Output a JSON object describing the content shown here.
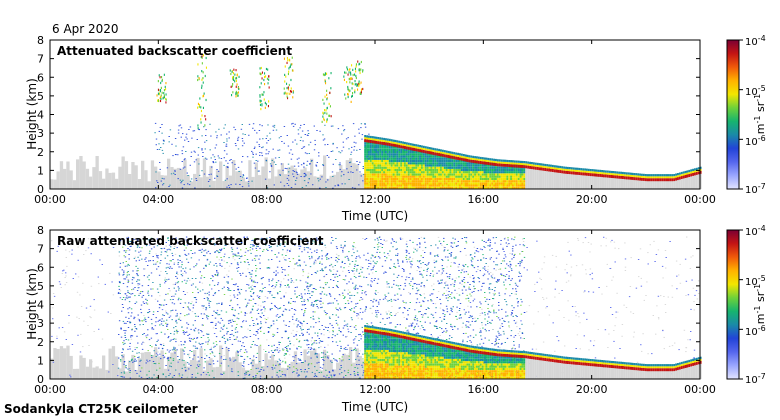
{
  "header": {
    "date": "6 Apr 2020"
  },
  "footer": {
    "instrument": "Sodankyla CT25K ceilometer"
  },
  "colorbar": {
    "tick_labels": [
      "10-4",
      "10-5",
      "10-6",
      "10-7"
    ],
    "unit_label": "m-1 sr-1",
    "colors": [
      "#7a0033",
      "#c41414",
      "#f05a0a",
      "#ffb200",
      "#f2e600",
      "#6ed23a",
      "#17b46e",
      "#1a8aa8",
      "#2244d8",
      "#5566ee",
      "#9aa6ff",
      "#e2e4ff"
    ]
  },
  "chart_data": [
    {
      "type": "heatmap",
      "title": "Attenuated backscatter coefficient",
      "xlabel": "Time (UTC)",
      "ylabel": "Height (km)",
      "x_tick_labels": [
        "00:00",
        "04:00",
        "08:00",
        "12:00",
        "16:00",
        "20:00",
        "00:00"
      ],
      "x_range_hours": [
        0,
        24
      ],
      "y_ticks": [
        0,
        1,
        2,
        3,
        4,
        5,
        6,
        7,
        8
      ],
      "ylim": [
        0,
        8
      ],
      "color_scale": {
        "type": "log",
        "range": [
          1e-07,
          0.0001
        ],
        "unit": "m-1 sr-1"
      },
      "features": {
        "boundary_layer_top_km": [
          [
            11.6,
            2.6
          ],
          [
            12.5,
            2.4
          ],
          [
            13.5,
            2.1
          ],
          [
            14.5,
            1.8
          ],
          [
            15.5,
            1.5
          ],
          [
            16.5,
            1.3
          ],
          [
            17.5,
            1.2
          ],
          [
            19.0,
            0.9
          ],
          [
            20.5,
            0.7
          ],
          [
            22.0,
            0.5
          ],
          [
            23.0,
            0.5
          ],
          [
            24.0,
            0.9
          ]
        ],
        "aerosol_layer": {
          "from_hour": 11.6,
          "to_hour": 17.5,
          "top_km": 2.5
        },
        "clouds": [
          {
            "hour": 4.1,
            "base_km": 4.5,
            "top_km": 6.2
          },
          {
            "hour": 5.6,
            "base_km": 3.2,
            "top_km": 7.2
          },
          {
            "hour": 6.8,
            "base_km": 4.9,
            "top_km": 6.4
          },
          {
            "hour": 7.9,
            "base_km": 4.2,
            "top_km": 6.5
          },
          {
            "hour": 8.8,
            "base_km": 4.8,
            "top_km": 7.0
          },
          {
            "hour": 10.2,
            "base_km": 3.5,
            "top_km": 6.2
          },
          {
            "hour": 11.0,
            "base_km": 4.5,
            "top_km": 6.6
          },
          {
            "hour": 11.4,
            "base_km": 5.0,
            "top_km": 6.8
          }
        ]
      }
    },
    {
      "type": "heatmap",
      "title": "Raw attenuated backscatter coefficient",
      "xlabel": "Time (UTC)",
      "ylabel": "Height (km)",
      "x_tick_labels": [
        "00:00",
        "04:00",
        "08:00",
        "12:00",
        "16:00",
        "20:00",
        "00:00"
      ],
      "x_range_hours": [
        0,
        24
      ],
      "y_ticks": [
        0,
        1,
        2,
        3,
        4,
        5,
        6,
        7,
        8
      ],
      "ylim": [
        0,
        8
      ],
      "color_scale": {
        "type": "log",
        "range": [
          1e-07,
          0.0001
        ],
        "unit": "m-1 sr-1"
      },
      "features": {
        "boundary_layer_top_km": [
          [
            11.6,
            2.6
          ],
          [
            12.5,
            2.4
          ],
          [
            13.5,
            2.1
          ],
          [
            14.5,
            1.8
          ],
          [
            15.5,
            1.5
          ],
          [
            16.5,
            1.3
          ],
          [
            17.5,
            1.2
          ],
          [
            19.0,
            0.9
          ],
          [
            20.5,
            0.7
          ],
          [
            22.0,
            0.5
          ],
          [
            23.0,
            0.5
          ],
          [
            24.0,
            0.9
          ]
        ],
        "noise_region_hours": [
          2.5,
          17.5
        ]
      }
    }
  ]
}
